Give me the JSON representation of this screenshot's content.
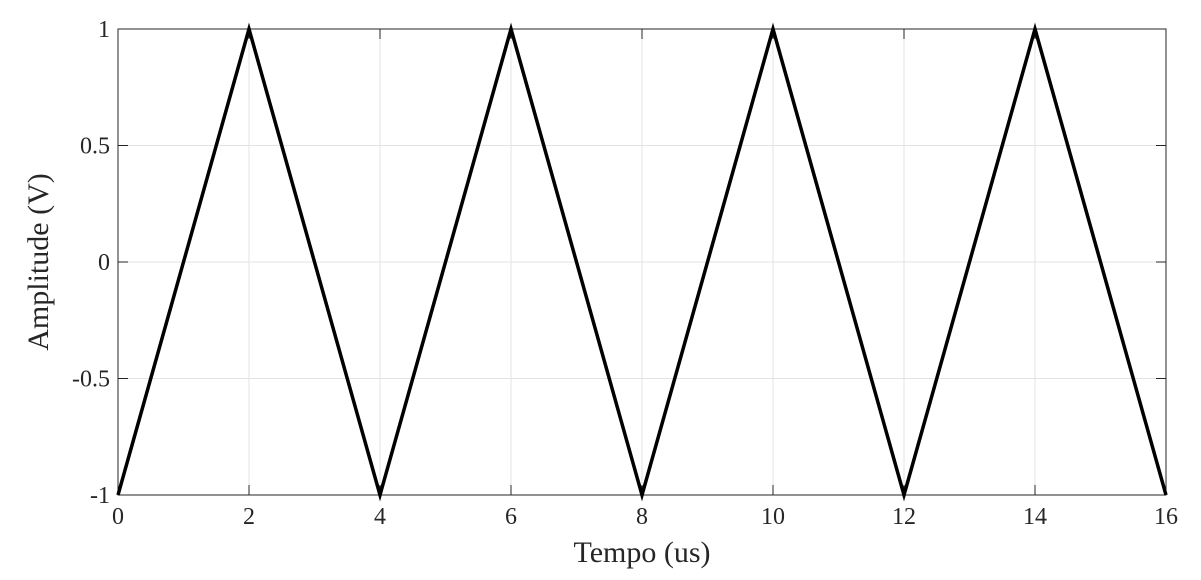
{
  "chart_data": {
    "type": "line",
    "x_label": "Tempo (us)",
    "y_label": "Amplitude (V)",
    "x": [
      0,
      2,
      4,
      6,
      8,
      10,
      12,
      14,
      16
    ],
    "series": [
      {
        "name": "Amplitude",
        "color": "#000000",
        "values": [
          -1,
          1,
          -1,
          1,
          -1,
          1,
          -1,
          1,
          -1
        ]
      }
    ],
    "xlim": [
      0,
      16
    ],
    "xticks": [
      0,
      2,
      4,
      6,
      8,
      10,
      12,
      14,
      16
    ],
    "ylim": [
      -1,
      1
    ],
    "yticks": [
      -1,
      -0.5,
      0,
      0.5,
      1
    ],
    "grid": true
  }
}
